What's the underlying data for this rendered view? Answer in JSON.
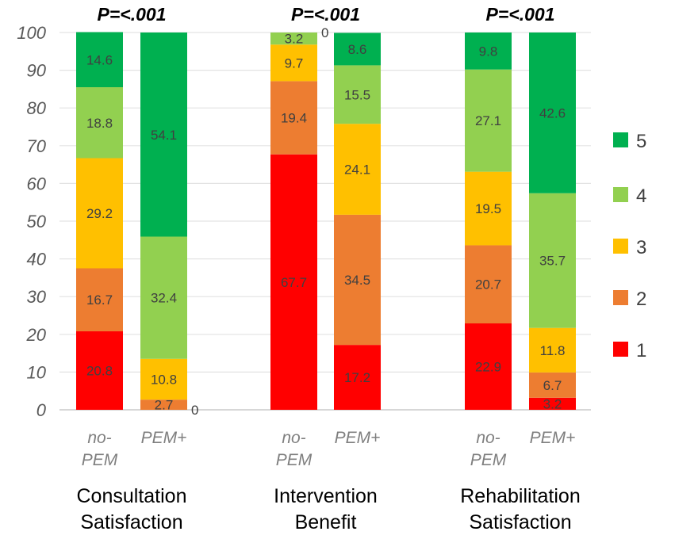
{
  "chart_data": {
    "type": "bar",
    "stacked": true,
    "ylim": [
      0,
      100
    ],
    "yticks": [
      0,
      10,
      20,
      30,
      40,
      50,
      60,
      70,
      80,
      90,
      100
    ],
    "grid": true,
    "legend_position": "right",
    "groups": [
      {
        "label": [
          "Consultation",
          "Satisfaction"
        ],
        "p_value": "P=<.001"
      },
      {
        "label": [
          "Intervention",
          "Benefit"
        ],
        "p_value": "P=<.001"
      },
      {
        "label": [
          "Rehabilitation",
          "Satisfaction"
        ],
        "p_value": "P=<.001"
      }
    ],
    "categories": [
      {
        "group": 0,
        "label": [
          "no-",
          "PEM"
        ]
      },
      {
        "group": 0,
        "label": [
          "PEM+"
        ]
      },
      {
        "group": 1,
        "label": [
          "no-",
          "PEM"
        ]
      },
      {
        "group": 1,
        "label": [
          "PEM+"
        ]
      },
      {
        "group": 2,
        "label": [
          "no-",
          "PEM"
        ]
      },
      {
        "group": 2,
        "label": [
          "PEM+"
        ]
      }
    ],
    "series": [
      {
        "name": "1",
        "color": "#FF0000",
        "values": [
          20.8,
          0,
          67.7,
          17.2,
          22.9,
          3.2
        ]
      },
      {
        "name": "2",
        "color": "#ED7D31",
        "values": [
          16.7,
          2.7,
          19.4,
          34.5,
          20.7,
          6.7
        ]
      },
      {
        "name": "3",
        "color": "#FFC000",
        "values": [
          29.2,
          10.8,
          9.7,
          24.1,
          19.5,
          11.8
        ]
      },
      {
        "name": "4",
        "color": "#92D050",
        "values": [
          18.8,
          32.4,
          3.2,
          15.5,
          27.1,
          35.7
        ]
      },
      {
        "name": "5",
        "color": "#00B050",
        "values": [
          14.6,
          54.1,
          0,
          8.6,
          9.8,
          42.6
        ]
      }
    ]
  }
}
